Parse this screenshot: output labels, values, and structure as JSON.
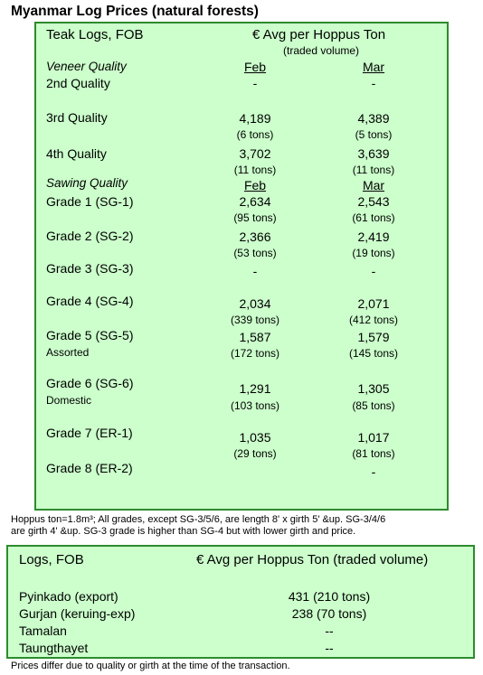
{
  "title": "Myanmar Log Prices (natural forests)",
  "teak": {
    "header_left": "Teak Logs, FOB",
    "header_right": "€ Avg per Hoppus Ton",
    "header_sub": "(traded volume)",
    "veneer_label": "Veneer Quality",
    "sawing_label": "Sawing Quality",
    "month1": "Feb",
    "month2": "Mar",
    "rows": [
      {
        "label": "2nd Quality",
        "feb": "-",
        "feb_tons": "",
        "mar": "-",
        "mar_tons": ""
      },
      {
        "label": "3rd Quality",
        "feb": "4,189",
        "feb_tons": "(6 tons)",
        "mar": "4,389",
        "mar_tons": "(5 tons)"
      },
      {
        "label": "4th Quality",
        "feb": "3,702",
        "feb_tons": "(11 tons)",
        "mar": "3,639",
        "mar_tons": "(11 tons)"
      },
      {
        "label": "Grade 1 (SG-1)",
        "feb": "2,634",
        "feb_tons": "(95 tons)",
        "mar": "2,543",
        "mar_tons": "(61 tons)"
      },
      {
        "label": "Grade 2 (SG-2)",
        "feb": "2,366",
        "feb_tons": "(53 tons)",
        "mar": "2,419",
        "mar_tons": "(19 tons)"
      },
      {
        "label": "Grade 3 (SG-3)",
        "feb": "-",
        "feb_tons": "",
        "mar": "-",
        "mar_tons": ""
      },
      {
        "label": "Grade 4 (SG-4)",
        "feb": "2,034",
        "feb_tons": "(339 tons)",
        "mar": "2,071",
        "mar_tons": "(412 tons)"
      },
      {
        "label": "Grade 5 (SG-5)",
        "sublabel": "Assorted",
        "feb": "1,587",
        "feb_tons": "(172 tons)",
        "mar": "1,579",
        "mar_tons": "(145 tons)"
      },
      {
        "label": "Grade 6 (SG-6)",
        "sublabel": "Domestic",
        "feb": "1,291",
        "feb_tons": "(103 tons)",
        "mar": "1,305",
        "mar_tons": "(85 tons)"
      },
      {
        "label": "Grade 7 (ER-1)",
        "feb": "1,035",
        "feb_tons": "(29 tons)",
        "mar": "1,017",
        "mar_tons": "(81 tons)"
      },
      {
        "label": "Grade 8 (ER-2)",
        "feb": "",
        "feb_tons": "",
        "mar": "-",
        "mar_tons": ""
      }
    ]
  },
  "note_line1": "Hoppus ton=1.8m³; All grades, except SG-3/5/6, are length 8' x girth 5' &up. SG-3/4/6",
  "note_line2": "are girth 4' &up. SG-3 grade is higher than SG-4 but with lower girth and price.",
  "logs": {
    "header_left": "Logs, FOB",
    "header_right": "€ Avg per Hoppus Ton (traded volume)",
    "rows": [
      {
        "label": "Pyinkado (export)",
        "value": "431 (210 tons)"
      },
      {
        "label": "Gurjan (keruing-exp)",
        "value": "238 (70 tons)"
      },
      {
        "label": "Tamalan",
        "value": "--"
      },
      {
        "label": "Taungthayet",
        "value": "--"
      }
    ]
  },
  "footer": "Prices differ due to quality or girth at the time of the transaction."
}
